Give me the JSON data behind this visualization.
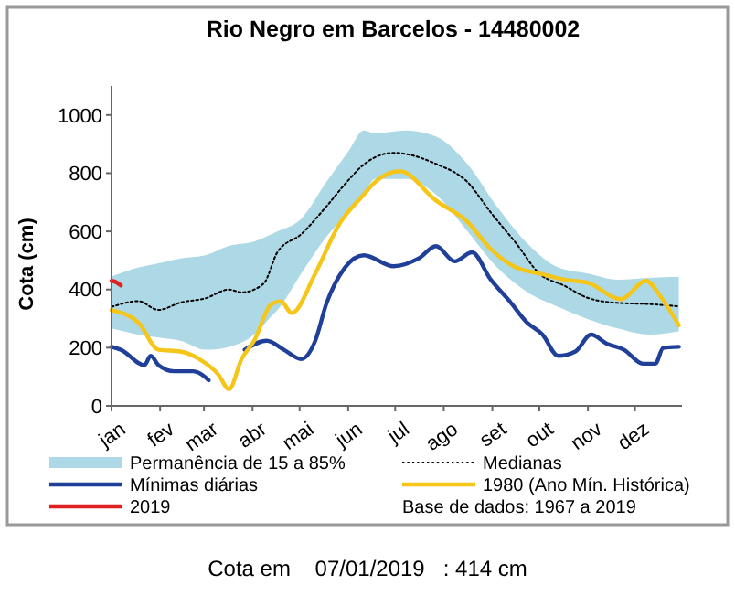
{
  "chart_data": {
    "type": "line",
    "title": "Rio Negro em Barcelos - 14480002",
    "ylabel": "Cota (cm)",
    "xlim": [
      "--01-01",
      "--12-31"
    ],
    "ylim": [
      0,
      1100
    ],
    "xticks": [
      {
        "value": "--01-01",
        "label": "jan"
      },
      {
        "value": "--02-01",
        "label": "fev"
      },
      {
        "value": "--03-01",
        "label": "mar"
      },
      {
        "value": "--04-01",
        "label": "abr"
      },
      {
        "value": "--05-01",
        "label": "mai"
      },
      {
        "value": "--06-01",
        "label": "jun"
      },
      {
        "value": "--07-01",
        "label": "jul"
      },
      {
        "value": "--08-01",
        "label": "ago"
      },
      {
        "value": "--09-01",
        "label": "set"
      },
      {
        "value": "--10-01",
        "label": "out"
      },
      {
        "value": "--11-01",
        "label": "nov"
      },
      {
        "value": "--12-01",
        "label": "dez"
      }
    ],
    "yticks": [
      0,
      200,
      400,
      600,
      800,
      1000
    ],
    "grid": false,
    "legend": "bottom",
    "marker": "none",
    "series": [
      {
        "name": "Permanência de 15 a 85%",
        "type": "area",
        "color": "#add8e6",
        "x": [
          "--01-01",
          "--01-18",
          "--01-31",
          "--02-14",
          "--03-02",
          "--03-17",
          "--04-02",
          "--04-13",
          "--04-17",
          "--05-02",
          "--05-18",
          "--06-01",
          "--06-11",
          "--06-18",
          "--07-08",
          "--07-27",
          "--08-16",
          "--09-04",
          "--09-23",
          "--10-13",
          "--11-01",
          "--11-20",
          "--12-10",
          "--12-29"
        ],
        "lower": [
          266,
          245,
          235,
          224,
          193,
          203,
          245,
          308,
          330,
          455,
          581,
          664,
          727,
          780,
          780,
          727,
          601,
          476,
          392,
          340,
          298,
          266,
          245,
          256
        ],
        "values": [
          null,
          null,
          null,
          null,
          null,
          null,
          null,
          null,
          null,
          null,
          null,
          null,
          null,
          null,
          null,
          null,
          null,
          null,
          null,
          null,
          null,
          null,
          null,
          null
        ],
        "upper": [
          445,
          475,
          490,
          507,
          518,
          550,
          565,
          590,
          600,
          643,
          769,
          874,
          947,
          937,
          947,
          926,
          832,
          685,
          560,
          476,
          455,
          434,
          440,
          444
        ]
      },
      {
        "name": "Medianas",
        "color": "#000000",
        "line_style": "dotted",
        "x": [
          "--01-01",
          "--01-18",
          "--01-31",
          "--02-14",
          "--03-02",
          "--03-17",
          "--03-25",
          "--04-08",
          "--04-17",
          "--05-02",
          "--05-18",
          "--06-01",
          "--06-11",
          "--06-30",
          "--07-27",
          "--08-16",
          "--08-31",
          "--09-16",
          "--10-01",
          "--10-17",
          "--11-01",
          "--11-20",
          "--12-10",
          "--12-29"
        ],
        "values": [
          340,
          360,
          330,
          355,
          370,
          400,
          390,
          420,
          530,
          590,
          685,
          775,
          830,
          870,
          832,
          770,
          665,
          560,
          455,
          413,
          371,
          354,
          350,
          342
        ]
      },
      {
        "name": "Mínimas diárias",
        "color": "#1f3f99",
        "x": [
          "--01-01",
          "--01-07",
          "--01-22",
          "--01-26",
          "--01-31",
          "--02-10",
          "--02-22",
          "--03-02",
          "--03-04",
          "--03-25",
          "--03-27",
          "--04-10",
          "--04-21",
          "--05-02",
          "--05-11",
          "--05-18",
          "--05-30",
          "--06-11",
          "--06-30",
          "--07-16",
          "--07-27",
          "--08-08",
          "--08-19",
          "--08-31",
          "--09-12",
          "--09-23",
          "--10-03",
          "--10-13",
          "--10-24",
          "--11-03",
          "--11-13",
          "--11-24",
          "--12-06",
          "--12-14",
          "--12-19",
          "--12-29"
        ],
        "values": [
          203,
          193,
          140,
          172,
          140,
          119,
          119,
          98,
          88,
          null,
          193,
          224,
          193,
          161,
          224,
          350,
          476,
          518,
          480,
          507,
          549,
          497,
          528,
          434,
          360,
          287,
          245,
          172,
          187,
          245,
          214,
          193,
          145,
          145,
          199,
          203
        ]
      },
      {
        "name": "1980 (Ano Mín. Histórica)",
        "color": "#f5c518",
        "x": [
          "--01-01",
          "--01-18",
          "--01-31",
          "--02-14",
          "--02-26",
          "--03-10",
          "--03-17",
          "--03-25",
          "--04-02",
          "--04-13",
          "--04-19",
          "--04-26",
          "--05-11",
          "--05-26",
          "--06-11",
          "--06-18",
          "--07-04",
          "--07-27",
          "--08-16",
          "--08-31",
          "--09-16",
          "--10-01",
          "--10-17",
          "--11-01",
          "--11-22",
          "--12-08",
          "--12-18",
          "--12-29"
        ],
        "values": [
          329,
          287,
          193,
          187,
          161,
          109,
          57,
          161,
          224,
          350,
          360,
          319,
          455,
          622,
          727,
          769,
          807,
          706,
          633,
          539,
          476,
          455,
          434,
          423,
          367,
          430,
          371,
          277
        ]
      },
      {
        "name": "2019",
        "color": "#e02020",
        "x": [
          "--01-01",
          "--01-04",
          "--01-07"
        ],
        "values": [
          430,
          425,
          414
        ]
      }
    ],
    "annotations": [
      "Base de dados: 1967 a 2019",
      "Cota em    07/01/2019   : 414 cm"
    ]
  }
}
